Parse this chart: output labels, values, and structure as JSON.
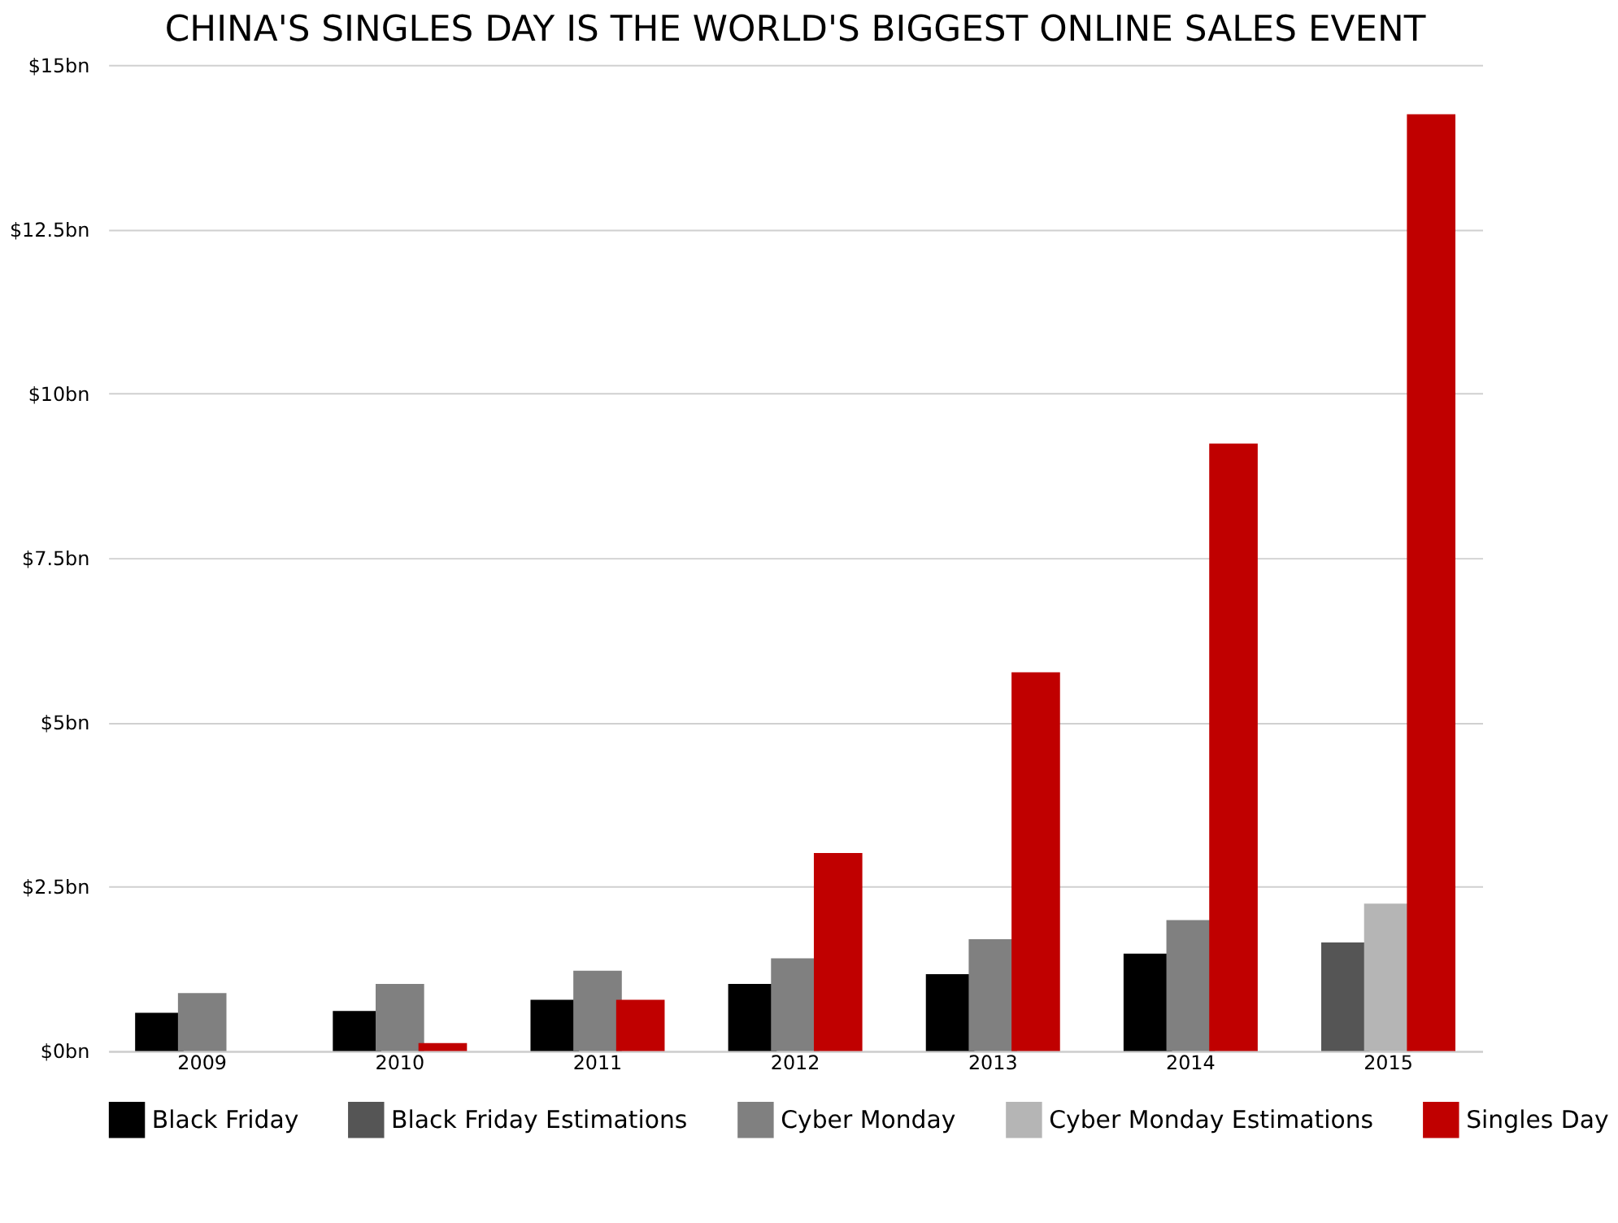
{
  "chart_data": {
    "type": "bar",
    "title": "CHINA'S SINGLES DAY IS THE WORLD'S BIGGEST ONLINE SALES EVENT",
    "categories": [
      "2009",
      "2010",
      "2011",
      "2012",
      "2013",
      "2014",
      "2015"
    ],
    "series": [
      {
        "name": "Black Friday",
        "color": "#000000",
        "values": [
          0.58,
          0.61,
          0.78,
          1.02,
          1.17,
          1.48,
          null
        ]
      },
      {
        "name": "Black Friday Estimations",
        "color": "#555555",
        "values": [
          null,
          null,
          null,
          null,
          null,
          null,
          1.65
        ]
      },
      {
        "name": "Cyber Monday",
        "color": "#808080",
        "values": [
          0.88,
          1.02,
          1.22,
          1.41,
          1.7,
          1.99,
          null
        ]
      },
      {
        "name": "Cyber Monday Estimations",
        "color": "#b5b5b5",
        "values": [
          null,
          null,
          null,
          null,
          null,
          null,
          2.24
        ]
      },
      {
        "name": "Singles Day",
        "color": "#c00000",
        "values": [
          null,
          0.12,
          0.78,
          3.01,
          5.76,
          9.24,
          14.25
        ]
      }
    ],
    "ylim": [
      0,
      15
    ],
    "yticks": [
      {
        "value": 0,
        "label": "$0bn"
      },
      {
        "value": 2.5,
        "label": "$2.5bn"
      },
      {
        "value": 5,
        "label": "$5bn"
      },
      {
        "value": 7.5,
        "label": "$7.5bn"
      },
      {
        "value": 10,
        "label": "$10bn"
      },
      {
        "value": 12.5,
        "label": "$12.5bn"
      },
      {
        "value": 15,
        "label": "$15bn"
      }
    ],
    "grid": "y",
    "legend": "bottom"
  }
}
